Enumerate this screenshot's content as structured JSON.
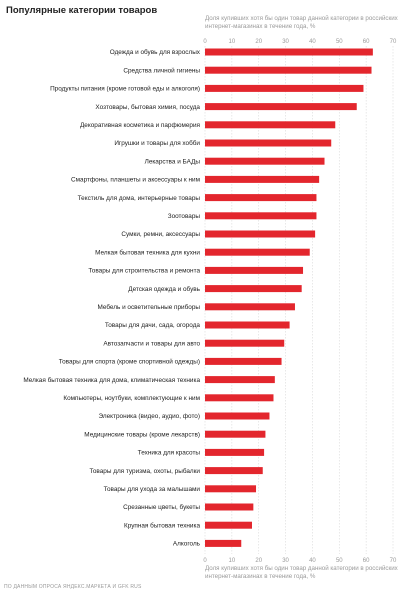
{
  "title": "Популярные категории товаров",
  "axis_note_top": "Доля купивших хотя бы один товар данной категории в российских интернет-магазинах в течение года, %",
  "axis_note_bottom": "Доля купивших хотя бы один товар данной категории в российских интернет-магазинах в течение года, %",
  "source": "ПО ДАННЫМ ОПРОСА ЯНДЕКС.МАРКЕТА И GFK RUS",
  "colors": {
    "bar": "#e3262d",
    "grid": "#d9d9d9",
    "tick": "#9a9a9a"
  },
  "chart_data": {
    "type": "bar",
    "orientation": "horizontal",
    "xlim": [
      0,
      70
    ],
    "xticks": [
      0,
      10,
      20,
      30,
      40,
      50,
      60,
      70
    ],
    "grid": true,
    "categories": [
      "Одежда и обувь для взрослых",
      "Средства личной гигиены",
      "Продукты питания (кроме готовой еды и алкоголя)",
      "Хозтовары, бытовая химия, посуда",
      "Декоративная косметика и парфюмерия",
      "Игрушки и товары для хобби",
      "Лекарства и БАДы",
      "Смартфоны, планшеты и аксессуары к ним",
      "Текстиль для дома, интерьерные товары",
      "Зоотовары",
      "Сумки, ремни, аксессуары",
      "Мелкая бытовая техника для кухни",
      "Товары для строительства и ремонта",
      "Детская одежда и обувь",
      "Мебель и осветительные приборы",
      "Товары для дачи, сада, огорода",
      "Автозапчасти и товары для авто",
      "Товары для спорта (кроме спортивной одежды)",
      "Мелкая бытовая техника для дома, климатическая техника",
      "Компьютеры, ноутбуки, комплектующие к ним",
      "Электроника (видео, аудио, фото)",
      "Медицинские товары (кроме лекарств)",
      "Техника для красоты",
      "Товары для туризма, охоты, рыбалки",
      "Товары для ухода за малышами",
      "Срезанные цветы, букеты",
      "Крупная бытовая техника",
      "Алкоголь"
    ],
    "values": [
      62.5,
      62,
      59,
      56.5,
      48.5,
      47,
      44.5,
      42.5,
      41.5,
      41.5,
      41,
      39,
      36.5,
      36,
      33.5,
      31.5,
      29.5,
      28.5,
      26,
      25.5,
      24,
      22.5,
      22,
      21.5,
      19,
      18,
      17.5,
      13.5
    ]
  }
}
